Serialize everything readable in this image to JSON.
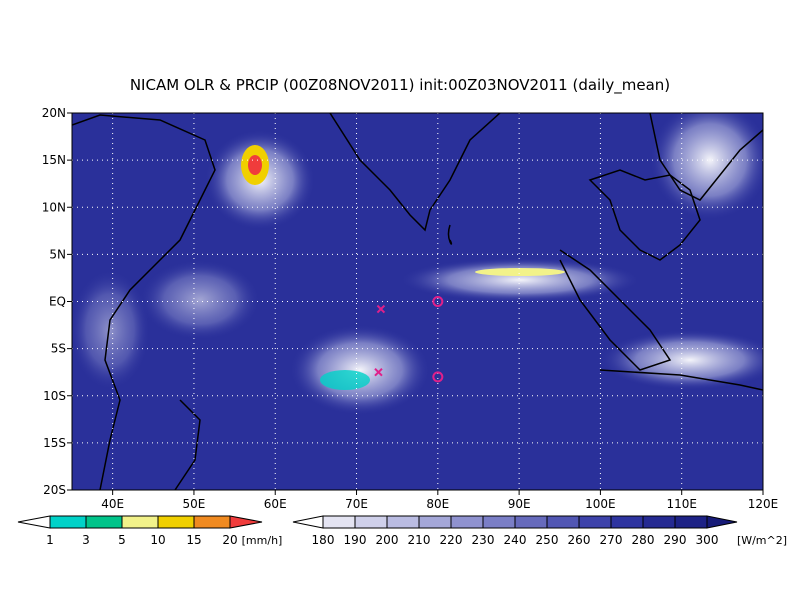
{
  "title": "NICAM OLR & PRCIP (00Z08NOV2011) init:00Z03NOV2011 (daily_mean)",
  "lon_range": [
    35,
    120
  ],
  "lat_range": [
    -20,
    20
  ],
  "lon_ticks": [
    {
      "value": 40,
      "label": "40E"
    },
    {
      "value": 50,
      "label": "50E"
    },
    {
      "value": 60,
      "label": "60E"
    },
    {
      "value": 70,
      "label": "70E"
    },
    {
      "value": 80,
      "label": "80E"
    },
    {
      "value": 90,
      "label": "90E"
    },
    {
      "value": 100,
      "label": "100E"
    },
    {
      "value": 110,
      "label": "110E"
    },
    {
      "value": 120,
      "label": "120E"
    }
  ],
  "lat_ticks": [
    {
      "value": 20,
      "label": "20N"
    },
    {
      "value": 15,
      "label": "15N"
    },
    {
      "value": 10,
      "label": "10N"
    },
    {
      "value": 5,
      "label": "5N"
    },
    {
      "value": 0,
      "label": "EQ"
    },
    {
      "value": -5,
      "label": "5S"
    },
    {
      "value": -10,
      "label": "10S"
    },
    {
      "value": -15,
      "label": "15S"
    },
    {
      "value": -20,
      "label": "20S"
    }
  ],
  "markers": [
    {
      "shape": "circle",
      "lon": 80,
      "lat": 0
    },
    {
      "shape": "circle",
      "lon": 80,
      "lat": -8
    },
    {
      "shape": "cross",
      "lon": 73,
      "lat": -0.8
    },
    {
      "shape": "cross",
      "lon": 72.7,
      "lat": -7.5
    }
  ],
  "precip_colorbar": {
    "levels": [
      1,
      3,
      5,
      10,
      15,
      20
    ],
    "unit": "[mm/h]",
    "colors": [
      "#ffffff",
      "#00d2c8",
      "#00c48a",
      "#f2f28a",
      "#f0d000",
      "#f08a20",
      "#f03c3c"
    ]
  },
  "olr_colorbar": {
    "levels": [
      180,
      190,
      200,
      210,
      220,
      230,
      240,
      250,
      260,
      270,
      280,
      290,
      300
    ],
    "unit": "[W/m^2]",
    "colors": [
      "#ffffff",
      "#e4e4f2",
      "#cfd0ea",
      "#babce2",
      "#a4a7d8",
      "#8f92cf",
      "#7a7ec6",
      "#666abc",
      "#5156b3",
      "#3d42aa",
      "#2e34a0",
      "#252a92",
      "#1d2286",
      "#171b78"
    ]
  }
}
